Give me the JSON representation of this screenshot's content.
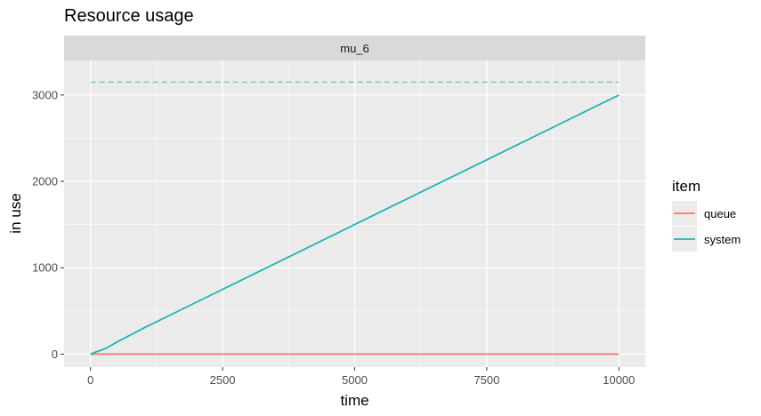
{
  "chart_data": {
    "type": "line",
    "title": "Resource usage",
    "facet": "mu_6",
    "xlabel": "time",
    "ylabel": "in use",
    "xlim": [
      -500,
      10500
    ],
    "ylim": [
      -150,
      3400
    ],
    "x_ticks": [
      0,
      2500,
      5000,
      7500,
      10000
    ],
    "x_tick_labels": [
      "0",
      "2500",
      "5000",
      "7500",
      "10000"
    ],
    "y_ticks": [
      0,
      1000,
      2000,
      3000
    ],
    "y_tick_labels": [
      "0",
      "1000",
      "2000",
      "3000"
    ],
    "grid": true,
    "legend": {
      "title": "item",
      "placement": "right",
      "entries": [
        "queue",
        "system"
      ]
    },
    "series": [
      {
        "name": "queue",
        "color": "#F8766D",
        "x": [
          0,
          10000
        ],
        "y": [
          0,
          0
        ]
      },
      {
        "name": "system",
        "color": "#1FB5B3",
        "x": [
          0,
          100,
          200,
          300,
          500,
          1000,
          2500,
          5000,
          7500,
          10000
        ],
        "y": [
          0,
          25,
          45,
          70,
          140,
          300,
          750,
          1500,
          2250,
          3000
        ]
      }
    ],
    "reference_lines": [
      {
        "series": "system",
        "style": "dashed",
        "y": 3150
      }
    ]
  }
}
